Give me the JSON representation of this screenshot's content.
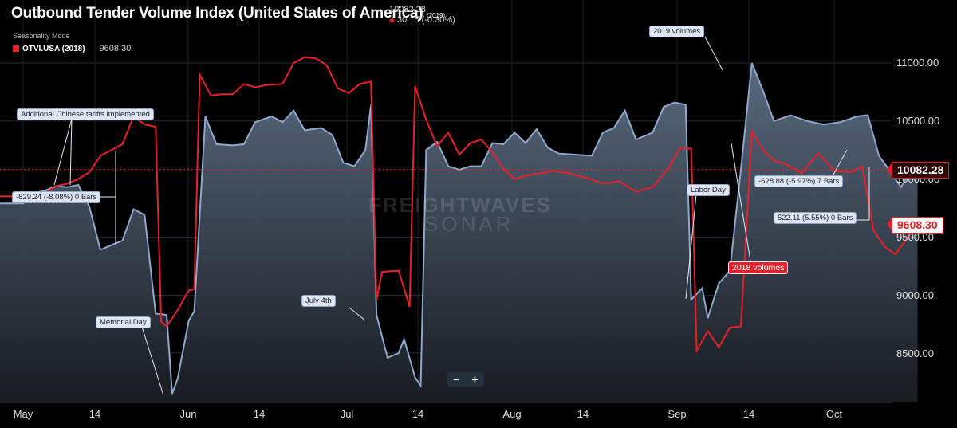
{
  "header": {
    "title": "Outbound Tender Volume Index (United States of America)",
    "title_year": "(2019)",
    "last_value": "10082.28",
    "change": "30.15 (-0.30%)",
    "mode": "Seasonality Mode",
    "legend_series": "OTVI.USA (2018)",
    "legend_value": "9608.30"
  },
  "watermark": {
    "line1": "FREIGHTWAVES",
    "line2": "SONAR"
  },
  "price_labels": {
    "current": "10082.28",
    "compare": "9608.30"
  },
  "zoom": {
    "minus": "−",
    "plus": "+"
  },
  "annotations": {
    "tariffs": "Additional Chinese tariffs implemented",
    "measure_may": "-829.24 (-8.08%) 0 Bars",
    "memorial": "Memorial Day",
    "july4": "July 4th",
    "labor": "Labor Day",
    "v2019": "2019 volumes",
    "v2018": "2018 volumes",
    "measure_oct1": "-628.88 (-5.97%) 7 Bars",
    "measure_oct2": "522.11 (5.55%) 0 Bars"
  },
  "colors": {
    "series_2019": "#8fa8cc",
    "series_2018": "#e8202a",
    "background": "#000000"
  },
  "chart_data": {
    "type": "line",
    "ylim": [
      8150,
      11450
    ],
    "yticks": [
      "11000.00",
      "10500.00",
      "10000.00",
      "9500.00",
      "9000.00",
      "8500.00"
    ],
    "xticks": [
      "May",
      "14",
      "Jun",
      "14",
      "Jul",
      "14",
      "Aug",
      "14",
      "Sep",
      "14",
      "Oct"
    ],
    "grid": true,
    "series": [
      {
        "name": "OTVI.USA (2019)",
        "style": "area",
        "values": [
          [
            "2019-05-01",
            9790
          ],
          [
            "2019-05-03",
            9880
          ],
          [
            "2019-05-05",
            9900
          ],
          [
            "2019-05-07",
            9940
          ],
          [
            "2019-05-09",
            9930
          ],
          [
            "2019-05-11",
            9950
          ],
          [
            "2019-05-13",
            9760
          ],
          [
            "2019-05-15",
            9390
          ],
          [
            "2019-05-17",
            9430
          ],
          [
            "2019-05-19",
            9470
          ],
          [
            "2019-05-21",
            9740
          ],
          [
            "2019-05-23",
            9690
          ],
          [
            "2019-05-25",
            8840
          ],
          [
            "2019-05-27",
            8830
          ],
          [
            "2019-05-28",
            8150
          ],
          [
            "2019-05-29",
            8280
          ],
          [
            "2019-05-31",
            8780
          ],
          [
            "2019-06-01",
            8860
          ],
          [
            "2019-06-03",
            10540
          ],
          [
            "2019-06-05",
            10300
          ],
          [
            "2019-06-08",
            10290
          ],
          [
            "2019-06-10",
            10300
          ],
          [
            "2019-06-12",
            10490
          ],
          [
            "2019-06-15",
            10540
          ],
          [
            "2019-06-17",
            10490
          ],
          [
            "2019-06-19",
            10590
          ],
          [
            "2019-06-21",
            10420
          ],
          [
            "2019-06-24",
            10440
          ],
          [
            "2019-06-26",
            10380
          ],
          [
            "2019-06-28",
            10140
          ],
          [
            "2019-06-30",
            10110
          ],
          [
            "2019-07-02",
            10250
          ],
          [
            "2019-07-03",
            10640
          ],
          [
            "2019-07-04",
            8830
          ],
          [
            "2019-07-06",
            8460
          ],
          [
            "2019-07-08",
            8500
          ],
          [
            "2019-07-09",
            8620
          ],
          [
            "2019-07-11",
            8290
          ],
          [
            "2019-07-12",
            8220
          ],
          [
            "2019-07-13",
            10250
          ],
          [
            "2019-07-15",
            10320
          ],
          [
            "2019-07-17",
            10110
          ],
          [
            "2019-07-19",
            10080
          ],
          [
            "2019-07-21",
            10110
          ],
          [
            "2019-07-23",
            10110
          ],
          [
            "2019-07-25",
            10310
          ],
          [
            "2019-07-27",
            10300
          ],
          [
            "2019-07-29",
            10400
          ],
          [
            "2019-07-31",
            10310
          ],
          [
            "2019-08-02",
            10430
          ],
          [
            "2019-08-04",
            10270
          ],
          [
            "2019-08-06",
            10220
          ],
          [
            "2019-08-09",
            10210
          ],
          [
            "2019-08-12",
            10200
          ],
          [
            "2019-08-14",
            10400
          ],
          [
            "2019-08-16",
            10440
          ],
          [
            "2019-08-18",
            10590
          ],
          [
            "2019-08-20",
            10340
          ],
          [
            "2019-08-23",
            10400
          ],
          [
            "2019-08-25",
            10620
          ],
          [
            "2019-08-27",
            10660
          ],
          [
            "2019-08-29",
            10640
          ],
          [
            "2019-08-30",
            8960
          ],
          [
            "2019-09-01",
            9060
          ],
          [
            "2019-09-02",
            8800
          ],
          [
            "2019-09-04",
            9100
          ],
          [
            "2019-09-06",
            9210
          ],
          [
            "2019-09-08",
            10080
          ],
          [
            "2019-09-10",
            11000
          ],
          [
            "2019-09-12",
            10760
          ],
          [
            "2019-09-14",
            10500
          ],
          [
            "2019-09-17",
            10550
          ],
          [
            "2019-09-20",
            10500
          ],
          [
            "2019-09-23",
            10470
          ],
          [
            "2019-09-26",
            10490
          ],
          [
            "2019-09-29",
            10540
          ],
          [
            "2019-10-01",
            10550
          ],
          [
            "2019-10-03",
            10200
          ],
          [
            "2019-10-05",
            10070
          ],
          [
            "2019-10-07",
            9930
          ],
          [
            "2019-10-09",
            10090
          ],
          [
            "2019-10-10",
            10082
          ]
        ]
      },
      {
        "name": "OTVI.USA (2018)",
        "style": "line",
        "values": [
          [
            "2019-05-01",
            9850
          ],
          [
            "2019-05-03",
            9840
          ],
          [
            "2019-05-05",
            9880
          ],
          [
            "2019-05-07",
            9940
          ],
          [
            "2019-05-09",
            9960
          ],
          [
            "2019-05-11",
            10000
          ],
          [
            "2019-05-13",
            10060
          ],
          [
            "2019-05-15",
            10200
          ],
          [
            "2019-05-17",
            10250
          ],
          [
            "2019-05-19",
            10300
          ],
          [
            "2019-05-21",
            10540
          ],
          [
            "2019-05-23",
            10470
          ],
          [
            "2019-05-25",
            10450
          ],
          [
            "2019-05-26",
            8770
          ],
          [
            "2019-05-27",
            8730
          ],
          [
            "2019-05-29",
            8870
          ],
          [
            "2019-05-31",
            9040
          ],
          [
            "2019-06-01",
            9050
          ],
          [
            "2019-06-02",
            10900
          ],
          [
            "2019-06-04",
            10720
          ],
          [
            "2019-06-06",
            10730
          ],
          [
            "2019-06-08",
            10730
          ],
          [
            "2019-06-10",
            10820
          ],
          [
            "2019-06-12",
            10790
          ],
          [
            "2019-06-14",
            10810
          ],
          [
            "2019-06-17",
            10820
          ],
          [
            "2019-06-19",
            11000
          ],
          [
            "2019-06-21",
            11050
          ],
          [
            "2019-06-23",
            11040
          ],
          [
            "2019-06-25",
            10980
          ],
          [
            "2019-06-27",
            10780
          ],
          [
            "2019-06-29",
            10740
          ],
          [
            "2019-07-01",
            10820
          ],
          [
            "2019-07-03",
            10840
          ],
          [
            "2019-07-04",
            8960
          ],
          [
            "2019-07-05",
            9200
          ],
          [
            "2019-07-08",
            9210
          ],
          [
            "2019-07-10",
            8900
          ],
          [
            "2019-07-11",
            10800
          ],
          [
            "2019-07-13",
            10510
          ],
          [
            "2019-07-15",
            10280
          ],
          [
            "2019-07-17",
            10400
          ],
          [
            "2019-07-19",
            10210
          ],
          [
            "2019-07-21",
            10310
          ],
          [
            "2019-07-23",
            10340
          ],
          [
            "2019-07-25",
            10230
          ],
          [
            "2019-07-27",
            10090
          ],
          [
            "2019-07-29",
            10000
          ],
          [
            "2019-08-01",
            10040
          ],
          [
            "2019-08-03",
            10050
          ],
          [
            "2019-08-05",
            10070
          ],
          [
            "2019-08-08",
            10050
          ],
          [
            "2019-08-11",
            10010
          ],
          [
            "2019-08-14",
            9960
          ],
          [
            "2019-08-17",
            9980
          ],
          [
            "2019-08-20",
            9890
          ],
          [
            "2019-08-23",
            9930
          ],
          [
            "2019-08-26",
            10100
          ],
          [
            "2019-08-28",
            10270
          ],
          [
            "2019-08-30",
            10260
          ],
          [
            "2019-08-31",
            8520
          ],
          [
            "2019-09-02",
            8690
          ],
          [
            "2019-09-04",
            8550
          ],
          [
            "2019-09-06",
            8720
          ],
          [
            "2019-09-08",
            8730
          ],
          [
            "2019-09-10",
            10410
          ],
          [
            "2019-09-12",
            10250
          ],
          [
            "2019-09-14",
            10160
          ],
          [
            "2019-09-16",
            10130
          ],
          [
            "2019-09-19",
            10050
          ],
          [
            "2019-09-22",
            10220
          ],
          [
            "2019-09-25",
            10070
          ],
          [
            "2019-09-28",
            10060
          ],
          [
            "2019-09-30",
            10110
          ],
          [
            "2019-10-02",
            9560
          ],
          [
            "2019-10-04",
            9420
          ],
          [
            "2019-10-06",
            9350
          ],
          [
            "2019-10-08",
            9480
          ],
          [
            "2019-10-10",
            9608
          ]
        ]
      }
    ],
    "reference_line": 10082.28
  }
}
